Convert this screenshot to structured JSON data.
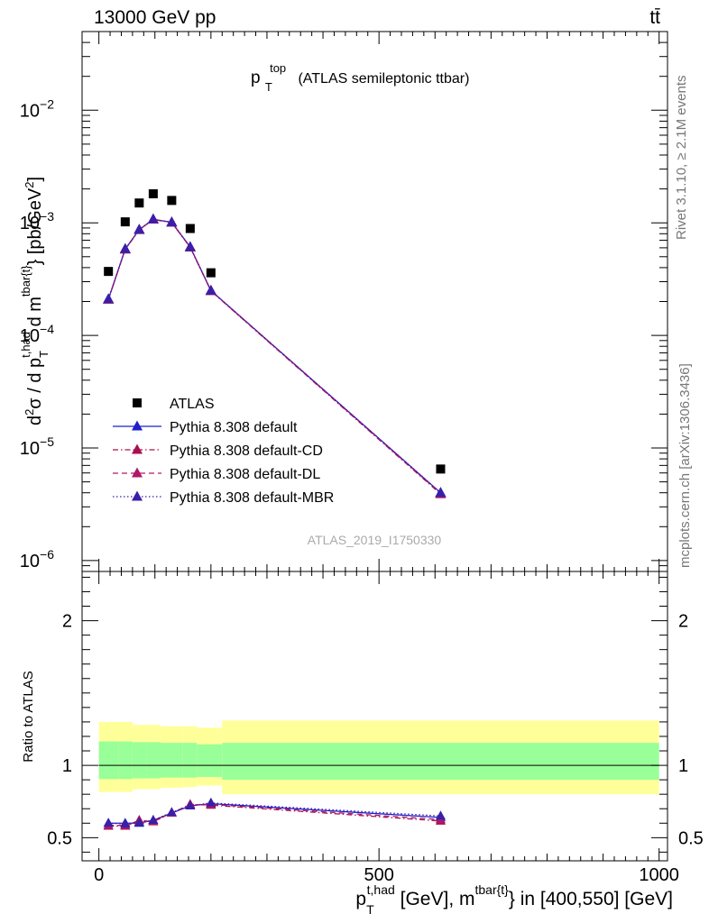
{
  "header": {
    "energy_label": "13000 GeV pp",
    "process_label": "tt̄",
    "analysis_id": "ATLAS_2019_I1750330",
    "rivet_label": "Rivet 3.1.10, ≥ 2.1M events",
    "source_label": "mcplots.cern.ch [arXiv:1306.3436]"
  },
  "colors": {
    "data": "#000000",
    "default": "#1f1fcc",
    "cd": "#a8104e",
    "dl": "#b0186a",
    "mbr": "#3a1fa8",
    "band_inner": "#99ff99",
    "band_outer": "#ffff99"
  },
  "chart_data": [
    {
      "type": "scatter",
      "title_main": "p",
      "title_sub": "T",
      "title_sup": "top",
      "title_rest": "(ATLAS semileptonic ttbar)",
      "yscale": "log",
      "xlim": [
        -30,
        1015
      ],
      "ylim": [
        8e-07,
        0.05
      ],
      "ylabel": "d²σ / d p_T^{t,had} d m^{tbar{t}} [pb/GeV²]",
      "ylabel_parts": {
        "a": "d",
        "a_sup": "2",
        "b": "σ / d p",
        "b_sub": "T",
        "b_sup": "t,had",
        "c": " d m",
        "c_sup": "tbar{t}",
        "d": "} [pb/GeV",
        "d_sup": "2",
        "e": "]"
      },
      "ytick_labels": [
        {
          "value": 0.01,
          "base": "10",
          "exp": "−2"
        },
        {
          "value": 0.001,
          "base": "10",
          "exp": "−3"
        },
        {
          "value": 0.0001,
          "base": "10",
          "exp": "−4"
        },
        {
          "value": 1e-05,
          "base": "10",
          "exp": "−5"
        },
        {
          "value": 1e-06,
          "base": "10",
          "exp": "−6"
        }
      ],
      "legend_position": "bottom-left",
      "x": [
        17,
        47,
        72,
        97,
        130,
        163,
        200,
        610
      ],
      "series": [
        {
          "name": "ATLAS",
          "marker": "square",
          "key": "data",
          "values": [
            0.00037,
            0.00102,
            0.0015,
            0.00181,
            0.00158,
            0.00089,
            0.00036,
            6.5e-06
          ]
        },
        {
          "name": "Pythia 8.308 default",
          "marker": "triangle",
          "line": "solid",
          "key": "default",
          "values": [
            0.00021,
            0.000585,
            0.00087,
            0.001075,
            0.00101,
            0.00061,
            0.00025,
            4e-06
          ]
        },
        {
          "name": "Pythia 8.308 default-CD",
          "marker": "triangle",
          "line": "dashdot",
          "key": "cd",
          "values": [
            0.000208,
            0.00058,
            0.000865,
            0.00107,
            0.001005,
            0.000605,
            0.000248,
            3.9e-06
          ]
        },
        {
          "name": "Pythia 8.308 default-DL",
          "marker": "triangle",
          "line": "dashed",
          "key": "dl",
          "values": [
            0.000209,
            0.000582,
            0.000868,
            0.001072,
            0.001008,
            0.000608,
            0.000249,
            3.95e-06
          ]
        },
        {
          "name": "Pythia 8.308 default-MBR",
          "marker": "triangle",
          "line": "dotted",
          "key": "mbr",
          "values": [
            0.00021,
            0.000585,
            0.00087,
            0.001075,
            0.00101,
            0.00061,
            0.00025,
            4e-06
          ]
        }
      ]
    },
    {
      "type": "line",
      "ylabel": "Ratio to ATLAS",
      "yscale": "linear",
      "xlim": [
        -30,
        1015
      ],
      "ylim": [
        0.34,
        2.34
      ],
      "yticks": [
        0.5,
        1,
        2
      ],
      "ytick_labels": [
        "0.5",
        "1",
        "2"
      ],
      "xticks": [
        0,
        500,
        1000
      ],
      "xtick_labels": [
        "0",
        "500",
        "1000"
      ],
      "xlabel_parts": {
        "a": "p",
        "a_sub": "T",
        "a_sup": "t,had",
        "b": " [GeV], m",
        "b_sup": "tbar{t}",
        "c": "} in [400,550] [GeV]"
      },
      "x": [
        17,
        47,
        72,
        97,
        130,
        163,
        200,
        610
      ],
      "bands": {
        "edges": [
          0,
          35,
          60,
          85,
          110,
          150,
          175,
          220,
          1000
        ],
        "inner_lo": [
          0.905,
          0.905,
          0.91,
          0.91,
          0.915,
          0.915,
          0.92,
          0.9
        ],
        "inner_hi": [
          1.165,
          1.165,
          1.16,
          1.16,
          1.155,
          1.155,
          1.145,
          1.155
        ],
        "outer_lo": [
          0.815,
          0.815,
          0.835,
          0.835,
          0.845,
          0.85,
          0.86,
          0.8
        ],
        "outer_hi": [
          1.3,
          1.3,
          1.28,
          1.28,
          1.27,
          1.27,
          1.26,
          1.31
        ]
      },
      "series": [
        {
          "name": "Pythia 8.308 default",
          "key": "default",
          "line": "solid",
          "values": [
            0.6,
            0.6,
            0.6,
            0.62,
            0.67,
            0.72,
            0.735,
            0.64
          ]
        },
        {
          "name": "Pythia 8.308 default-CD",
          "key": "cd",
          "line": "dashdot",
          "values": [
            0.58,
            0.58,
            0.62,
            0.61,
            0.67,
            0.73,
            0.725,
            0.615
          ]
        },
        {
          "name": "Pythia 8.308 default-DL",
          "key": "dl",
          "line": "dashed",
          "values": [
            0.585,
            0.585,
            0.61,
            0.615,
            0.67,
            0.725,
            0.73,
            0.625
          ]
        },
        {
          "name": "Pythia 8.308 default-MBR",
          "key": "mbr",
          "line": "dotted",
          "values": [
            0.6,
            0.595,
            0.605,
            0.62,
            0.675,
            0.72,
            0.74,
            0.65
          ]
        }
      ]
    }
  ]
}
